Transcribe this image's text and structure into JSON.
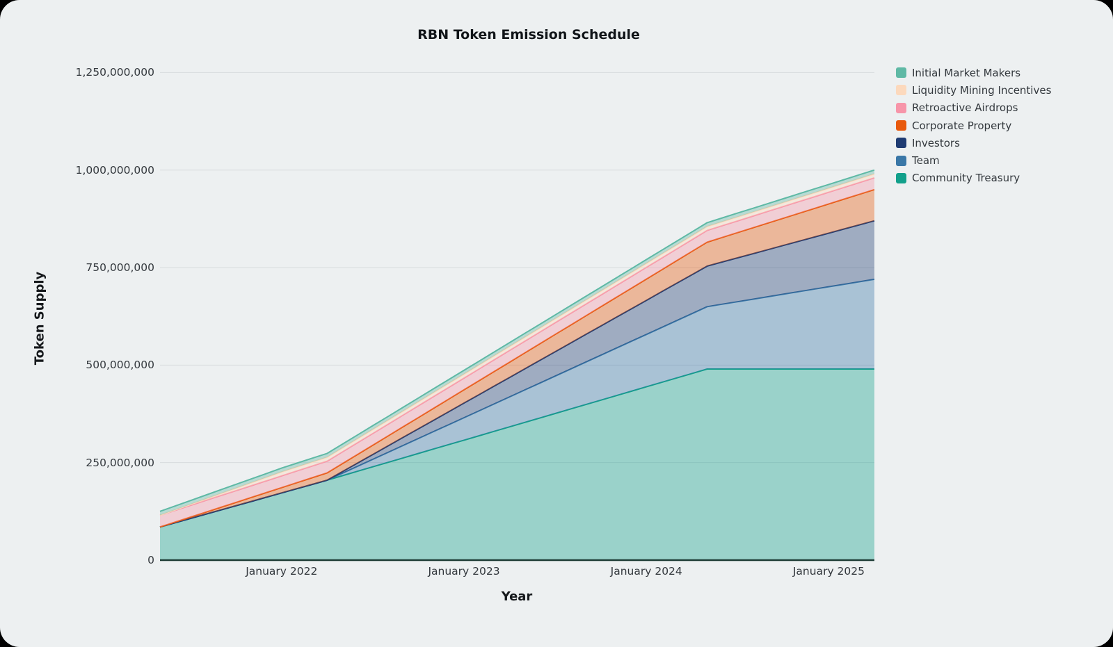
{
  "page": {
    "outer_background": "#000000",
    "card_background": "#edf0f1"
  },
  "chart": {
    "title": "RBN Token Emission Schedule",
    "x_axis_label": "Year",
    "y_axis_label": "Token Supply"
  },
  "chart_data": {
    "type": "area",
    "stacked": true,
    "grid": "horizontal",
    "legend_position": "top-right",
    "x_unit": "months elapsed (x=0 is May 2021, chart ends April 2025)",
    "x_range": [
      0,
      47
    ],
    "y_range": [
      0,
      1250000000
    ],
    "x_ticks": [
      {
        "month": 8,
        "label": "January 2022"
      },
      {
        "month": 20,
        "label": "January 2023"
      },
      {
        "month": 32,
        "label": "January 2024"
      },
      {
        "month": 44,
        "label": "January 2025"
      }
    ],
    "y_ticks": [
      {
        "value": 0,
        "label": "0"
      },
      {
        "value": 250000000,
        "label": "250,000,000"
      },
      {
        "value": 500000000,
        "label": "500,000,000"
      },
      {
        "value": 750000000,
        "label": "750,000,000"
      },
      {
        "value": 1000000000,
        "label": "1,000,000,000"
      },
      {
        "value": 1250000000,
        "label": "1,250,000,000"
      }
    ],
    "series_note": "listed bottom-of-stack first; points are [month, tokens] breakpoints of piecewise-linear vesting",
    "series": [
      {
        "name": "Community Treasury",
        "color": "#12a08b",
        "points": [
          [
            0,
            85000000
          ],
          [
            11,
            205000000
          ],
          [
            36,
            490000000
          ],
          [
            47,
            490000000
          ]
        ]
      },
      {
        "name": "Team",
        "color": "#3a77a7",
        "points": [
          [
            0,
            0
          ],
          [
            11,
            0
          ],
          [
            47,
            230000000
          ]
        ]
      },
      {
        "name": "Investors",
        "color": "#1f3c73",
        "points": [
          [
            0,
            0
          ],
          [
            11,
            0
          ],
          [
            47,
            150000000
          ]
        ]
      },
      {
        "name": "Corporate Property",
        "color": "#e8590c",
        "points": [
          [
            0,
            0
          ],
          [
            47,
            80000000
          ]
        ]
      },
      {
        "name": "Retroactive Airdrops",
        "color": "#f795a9",
        "points": [
          [
            0,
            30000000
          ],
          [
            47,
            30000000
          ]
        ]
      },
      {
        "name": "Liquidity Mining Incentives",
        "color": "#fcd9bd",
        "points": [
          [
            0,
            0
          ],
          [
            8,
            10000000
          ],
          [
            47,
            10000000
          ]
        ]
      },
      {
        "name": "Initial Market Makers",
        "color": "#5fb9a5",
        "points": [
          [
            0,
            10000000
          ],
          [
            47,
            10000000
          ]
        ]
      }
    ],
    "final_totals": {
      "Community Treasury": 490000000,
      "Team": 230000000,
      "Investors": 150000000,
      "Corporate Property": 80000000,
      "Retroactive Airdrops": 30000000,
      "Liquidity Mining Incentives": 10000000,
      "Initial Market Makers": 10000000,
      "total": 1000000000
    },
    "style": {
      "fill_opacity": 0.38,
      "line_width": 2,
      "gridline_color": "#d7dbdd",
      "axis_line_color": "#1d3c35"
    }
  }
}
